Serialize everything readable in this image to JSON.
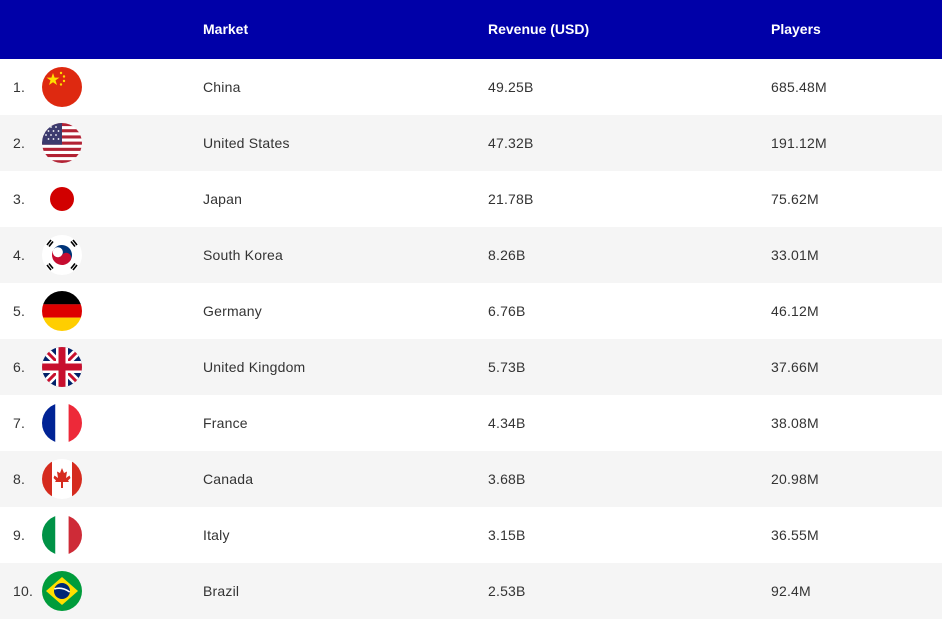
{
  "header": {
    "market_label": "Market",
    "revenue_label": "Revenue (USD)",
    "players_label": "Players"
  },
  "rows": [
    {
      "rank": "1.",
      "flag": "china-flag-icon",
      "market": "China",
      "revenue": "49.25B",
      "players": "685.48M"
    },
    {
      "rank": "2.",
      "flag": "united-states-flag-icon",
      "market": "United States",
      "revenue": "47.32B",
      "players": "191.12M"
    },
    {
      "rank": "3.",
      "flag": "japan-flag-icon",
      "market": "Japan",
      "revenue": "21.78B",
      "players": "75.62M"
    },
    {
      "rank": "4.",
      "flag": "south-korea-flag-icon",
      "market": "South Korea",
      "revenue": "8.26B",
      "players": "33.01M"
    },
    {
      "rank": "5.",
      "flag": "germany-flag-icon",
      "market": "Germany",
      "revenue": "6.76B",
      "players": "46.12M"
    },
    {
      "rank": "6.",
      "flag": "united-kingdom-flag-icon",
      "market": "United Kingdom",
      "revenue": "5.73B",
      "players": "37.66M"
    },
    {
      "rank": "7.",
      "flag": "france-flag-icon",
      "market": "France",
      "revenue": "4.34B",
      "players": "38.08M"
    },
    {
      "rank": "8.",
      "flag": "canada-flag-icon",
      "market": "Canada",
      "revenue": "3.68B",
      "players": "20.98M"
    },
    {
      "rank": "9.",
      "flag": "italy-flag-icon",
      "market": "Italy",
      "revenue": "3.15B",
      "players": "36.55M"
    },
    {
      "rank": "10.",
      "flag": "brazil-flag-icon",
      "market": "Brazil",
      "revenue": "2.53B",
      "players": "92.4M"
    }
  ],
  "colors": {
    "header_bg": "#0000a8",
    "header_text": "#ffffff",
    "row_alt_bg": "#f5f5f5",
    "text": "#333333"
  }
}
